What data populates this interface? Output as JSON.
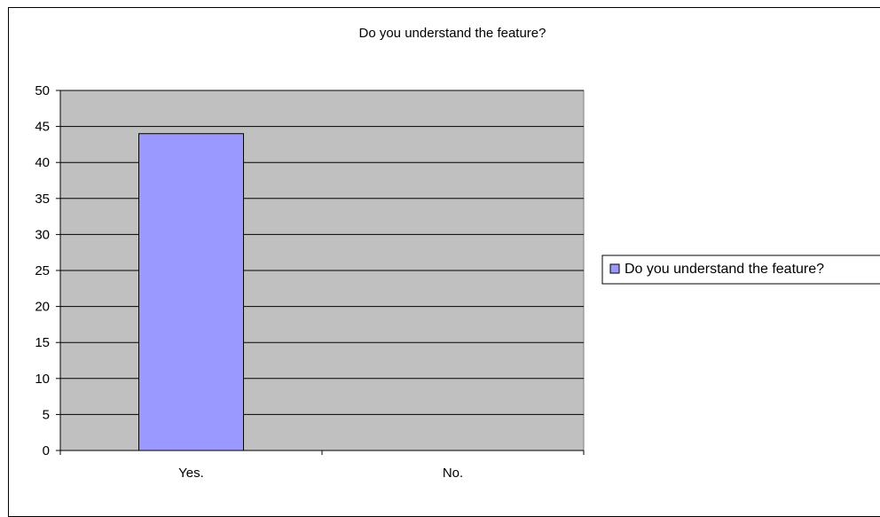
{
  "chart_data": {
    "type": "bar",
    "title": "Do you understand the feature?",
    "categories": [
      "Yes.",
      "No."
    ],
    "series": [
      {
        "name": "Do you understand the feature?",
        "values": [
          44,
          0
        ],
        "color": "#9999ff"
      }
    ],
    "ylim": [
      0,
      50
    ],
    "yticks": [
      0,
      5,
      10,
      15,
      20,
      25,
      30,
      35,
      40,
      45,
      50
    ],
    "xlabel": "",
    "ylabel": "",
    "grid": true,
    "plot_background": "#c0c0c0",
    "legend_position": "right"
  }
}
